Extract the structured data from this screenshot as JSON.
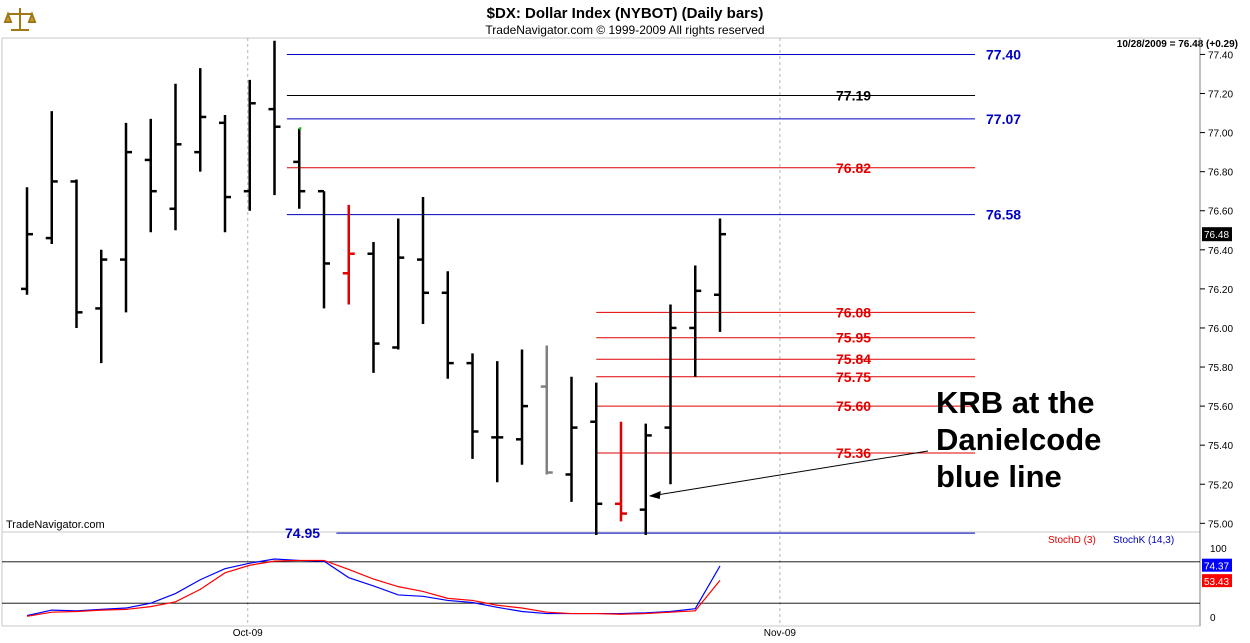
{
  "header": {
    "title": "$DX:  Dollar Index (NYBOT)  (Daily bars)",
    "subtitle": "TradeNavigator.com © 1999-2009 All rights reserved",
    "last_quote": "10/28/2009 = 76.48 (+0.29)",
    "watermark": "TradeNavigator.com"
  },
  "colors": {
    "bar": "#000000",
    "red_bar": "#e00000",
    "gray_bar": "#808080",
    "green_tick": "#00c000",
    "blue_level": "#0000c0",
    "red_level": "#e00000",
    "black_level": "#000000",
    "price_tag_bg": "#000000",
    "stochk": "#0000ff",
    "stochd": "#ff0000"
  },
  "annotation": {
    "lines": [
      "KRB at the",
      "Danielcode",
      "blue line"
    ]
  },
  "chart_data": [
    {
      "type": "ohlc",
      "title": "$DX:  Dollar Index (NYBOT)  (Daily bars)",
      "ylim": [
        74.93,
        77.52
      ],
      "y_ticks": [
        "77.40",
        "77.20",
        "77.00",
        "76.80",
        "76.60",
        "76.40",
        "76.20",
        "76.00",
        "75.80",
        "75.60",
        "75.40",
        "75.20",
        "75.00"
      ],
      "x_ticks": [
        {
          "label": "Oct-09",
          "bar": 9
        },
        {
          "label": "Nov-09",
          "bar": 30.5
        }
      ],
      "current_price": "76.48",
      "bars": [
        {
          "o": 76.2,
          "h": 76.72,
          "l": 76.17,
          "c": 76.48,
          "color": "black"
        },
        {
          "o": 76.46,
          "h": 77.11,
          "l": 76.43,
          "c": 76.75,
          "color": "black"
        },
        {
          "o": 76.75,
          "h": 76.76,
          "l": 76.0,
          "c": 76.08,
          "color": "black"
        },
        {
          "o": 76.1,
          "h": 76.4,
          "l": 75.82,
          "c": 76.35,
          "color": "black"
        },
        {
          "o": 76.35,
          "h": 77.05,
          "l": 76.08,
          "c": 76.9,
          "color": "black"
        },
        {
          "o": 76.86,
          "h": 77.07,
          "l": 76.49,
          "c": 76.7,
          "color": "black"
        },
        {
          "o": 76.61,
          "h": 77.25,
          "l": 76.5,
          "c": 76.94,
          "color": "black"
        },
        {
          "o": 76.9,
          "h": 77.33,
          "l": 76.8,
          "c": 77.08,
          "color": "black"
        },
        {
          "o": 77.05,
          "h": 77.09,
          "l": 76.49,
          "c": 76.67,
          "color": "black"
        },
        {
          "o": 76.7,
          "h": 77.27,
          "l": 76.6,
          "c": 77.15,
          "color": "black"
        },
        {
          "o": 77.12,
          "h": 77.47,
          "l": 76.68,
          "c": 77.03,
          "color": "black"
        },
        {
          "o": 76.85,
          "h": 77.02,
          "l": 76.61,
          "c": 76.7,
          "color": "black",
          "green_tick": 77.02
        },
        {
          "o": 76.7,
          "h": 76.7,
          "l": 76.1,
          "c": 76.33,
          "color": "black"
        },
        {
          "o": 76.28,
          "h": 76.63,
          "l": 76.12,
          "c": 76.38,
          "color": "red"
        },
        {
          "o": 76.38,
          "h": 76.44,
          "l": 75.77,
          "c": 75.92,
          "color": "black"
        },
        {
          "o": 75.9,
          "h": 76.56,
          "l": 75.89,
          "c": 76.36,
          "color": "black"
        },
        {
          "o": 76.35,
          "h": 76.67,
          "l": 76.02,
          "c": 76.18,
          "color": "black"
        },
        {
          "o": 76.18,
          "h": 76.29,
          "l": 75.74,
          "c": 75.82,
          "color": "black"
        },
        {
          "o": 75.82,
          "h": 75.87,
          "l": 75.33,
          "c": 75.47,
          "color": "black"
        },
        {
          "o": 75.44,
          "h": 75.83,
          "l": 75.21,
          "c": 75.44,
          "color": "black"
        },
        {
          "o": 75.43,
          "h": 75.89,
          "l": 75.3,
          "c": 75.6,
          "color": "black"
        },
        {
          "o": 75.7,
          "h": 75.91,
          "l": 75.25,
          "c": 75.26,
          "color": "gray"
        },
        {
          "o": 75.25,
          "h": 75.75,
          "l": 75.11,
          "c": 75.49,
          "color": "black"
        },
        {
          "o": 75.52,
          "h": 75.72,
          "l": 74.94,
          "c": 75.1,
          "color": "black"
        },
        {
          "o": 75.1,
          "h": 75.52,
          "l": 75.01,
          "c": 75.05,
          "color": "red"
        },
        {
          "o": 75.07,
          "h": 75.51,
          "l": 74.94,
          "c": 75.45,
          "color": "black"
        },
        {
          "o": 75.49,
          "h": 76.12,
          "l": 75.2,
          "c": 76.0,
          "color": "black"
        },
        {
          "o": 76.0,
          "h": 76.32,
          "l": 75.75,
          "c": 76.19,
          "color": "black"
        },
        {
          "o": 76.17,
          "h": 76.56,
          "l": 75.98,
          "c": 76.48,
          "color": "black"
        }
      ],
      "levels": [
        {
          "value": "77.40",
          "color": "blue",
          "from_bar": 10.5
        },
        {
          "value": "77.19",
          "color": "black",
          "from_bar": 10.5
        },
        {
          "value": "77.07",
          "color": "blue",
          "from_bar": 10.5
        },
        {
          "value": "76.82",
          "color": "red",
          "from_bar": 10.5
        },
        {
          "value": "76.58",
          "color": "blue",
          "from_bar": 10.5
        },
        {
          "value": "76.08",
          "color": "red",
          "from_bar": 23
        },
        {
          "value": "75.95",
          "color": "red",
          "from_bar": 23
        },
        {
          "value": "75.84",
          "color": "red",
          "from_bar": 23
        },
        {
          "value": "75.75",
          "color": "red",
          "from_bar": 23
        },
        {
          "value": "75.60",
          "color": "red",
          "from_bar": 23
        },
        {
          "value": "75.36",
          "color": "red",
          "from_bar": 23
        },
        {
          "value": "74.95",
          "color": "blue",
          "from_bar": 12.5,
          "label_left": true
        }
      ],
      "arrow_target": {
        "bar": 25,
        "price": 75.14
      }
    },
    {
      "type": "line",
      "ylim": [
        0,
        100
      ],
      "y_ticks": [
        "100",
        "0"
      ],
      "reference_lines": [
        80,
        20
      ],
      "legend": [
        {
          "name": "StochD (3)",
          "color": "red"
        },
        {
          "name": "StochK (14,3)",
          "color": "blue"
        }
      ],
      "current_values": {
        "stochk": "74.37",
        "stochd": "53.43"
      },
      "series": [
        {
          "name": "StochK (14,3)",
          "key": "stochk",
          "values": [
            2,
            10,
            9,
            11,
            13,
            20,
            34,
            54,
            70,
            78,
            84,
            82,
            81,
            57,
            45,
            32,
            30,
            24,
            21,
            14,
            8,
            5,
            5,
            5,
            5,
            6,
            8,
            12,
            74
          ]
        },
        {
          "name": "StochD (3)",
          "key": "stochd",
          "values": [
            1,
            7,
            8,
            10,
            11,
            15,
            22,
            40,
            64,
            75,
            81,
            82,
            82,
            69,
            55,
            44,
            37,
            27,
            24,
            17,
            13,
            7,
            5,
            5,
            4,
            5,
            7,
            9,
            53
          ]
        }
      ]
    }
  ]
}
